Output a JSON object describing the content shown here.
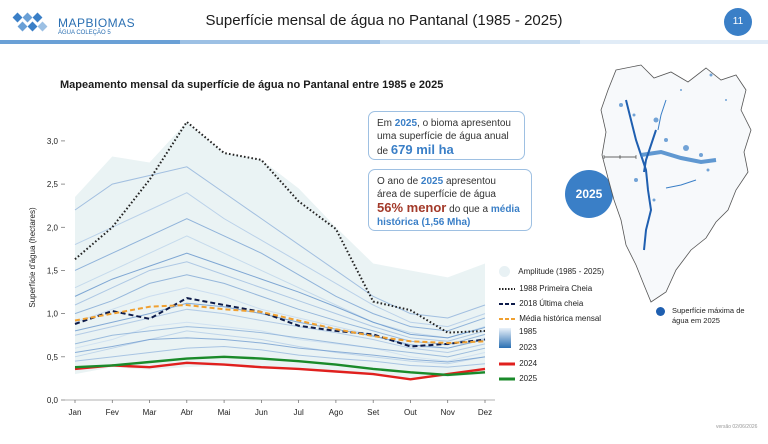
{
  "header": {
    "logo_text": "MAPBIOMAS",
    "logo_sub": "ÁGUA COLEÇÃO 5",
    "title": "Superfície mensal de água no Pantanal (1985 - 2025)",
    "page_number": "11"
  },
  "colors": {
    "accent": "#3a7fc7",
    "dark_blue": "#1f5fb0",
    "bar_colors": [
      "#6aa0d6",
      "#9cc0e4",
      "#c7dcf0",
      "#e1ecf7"
    ],
    "red": "#e0201e",
    "green": "#1a8a2a",
    "orange": "#f0a030"
  },
  "chart_data": {
    "type": "line",
    "title": "Mapeamento mensal da superfície de água no Pantanal entre 1985 e 2025",
    "xlabel": "",
    "ylabel": "Superfície d'água (hectares)",
    "categories": [
      "Jan",
      "Fev",
      "Mar",
      "Abr",
      "Mai",
      "Jun",
      "Jul",
      "Ago",
      "Set",
      "Out",
      "Nov",
      "Dez"
    ],
    "ylim": [
      0,
      3.3
    ],
    "yticks": [
      "0,0",
      "0,5",
      "1,0",
      "1,5",
      "2,0",
      "2,5",
      "3,0"
    ],
    "amplitude": {
      "name": "Amplitude (1985 - 2025)",
      "max": [
        2.35,
        2.82,
        2.75,
        3.22,
        2.86,
        2.78,
        2.45,
        2.0,
        1.58,
        1.5,
        1.42,
        1.58
      ],
      "min": [
        0.3,
        0.38,
        0.35,
        0.38,
        0.4,
        0.36,
        0.35,
        0.32,
        0.3,
        0.24,
        0.27,
        0.3
      ]
    },
    "gradient_series": [
      [
        0.6,
        0.7,
        0.85,
        0.9,
        0.85,
        0.8,
        0.7,
        0.65,
        0.6,
        0.5,
        0.45,
        0.55
      ],
      [
        0.9,
        1.05,
        1.2,
        1.3,
        1.2,
        1.05,
        0.95,
        0.85,
        0.75,
        0.62,
        0.6,
        0.72
      ],
      [
        1.3,
        1.5,
        1.7,
        1.9,
        1.7,
        1.5,
        1.3,
        1.1,
        0.9,
        0.78,
        0.72,
        0.85
      ],
      [
        0.5,
        0.6,
        0.7,
        0.8,
        0.75,
        0.7,
        0.62,
        0.55,
        0.5,
        0.45,
        0.42,
        0.5
      ],
      [
        1.8,
        2.0,
        2.2,
        2.4,
        2.1,
        1.85,
        1.6,
        1.35,
        1.1,
        0.9,
        0.85,
        1.0
      ],
      [
        0.75,
        0.85,
        0.95,
        1.05,
        1.0,
        0.92,
        0.85,
        0.78,
        0.7,
        0.6,
        0.55,
        0.65
      ],
      [
        1.1,
        1.3,
        1.5,
        1.6,
        1.45,
        1.3,
        1.15,
        1.0,
        0.85,
        0.72,
        0.68,
        0.8
      ],
      [
        0.45,
        0.5,
        0.55,
        0.6,
        0.62,
        0.58,
        0.52,
        0.48,
        0.45,
        0.4,
        0.38,
        0.42
      ],
      [
        2.2,
        2.5,
        2.6,
        2.7,
        2.4,
        2.1,
        1.8,
        1.5,
        1.2,
        1.0,
        0.95,
        1.1
      ],
      [
        0.65,
        0.75,
        0.8,
        0.85,
        0.82,
        0.78,
        0.72,
        0.66,
        0.6,
        0.55,
        0.5,
        0.6
      ],
      [
        1.0,
        1.15,
        1.35,
        1.45,
        1.35,
        1.2,
        1.05,
        0.92,
        0.8,
        0.68,
        0.64,
        0.76
      ],
      [
        1.5,
        1.7,
        1.9,
        2.1,
        1.9,
        1.7,
        1.45,
        1.2,
        1.0,
        0.85,
        0.8,
        0.95
      ],
      [
        0.55,
        0.62,
        0.7,
        0.72,
        0.7,
        0.66,
        0.6,
        0.56,
        0.52,
        0.47,
        0.44,
        0.5
      ],
      [
        0.8,
        0.9,
        1.0,
        1.12,
        1.08,
        1.0,
        0.9,
        0.82,
        0.74,
        0.64,
        0.6,
        0.7
      ],
      [
        1.2,
        1.4,
        1.55,
        1.7,
        1.55,
        1.4,
        1.25,
        1.08,
        0.9,
        0.76,
        0.72,
        0.84
      ]
    ],
    "series": [
      {
        "name": "1988 Primeira Cheia",
        "style": "dotted",
        "color": "#222222",
        "values": [
          1.63,
          2.0,
          2.55,
          3.22,
          2.86,
          2.78,
          2.3,
          1.98,
          1.14,
          1.04,
          0.78,
          0.8
        ]
      },
      {
        "name": "2018 Última cheia",
        "style": "dashed",
        "color": "#0d1b4a",
        "values": [
          0.88,
          1.03,
          0.94,
          1.18,
          1.1,
          1.02,
          0.86,
          0.8,
          0.76,
          0.62,
          0.65,
          0.7
        ]
      },
      {
        "name": "Média histórica mensal",
        "style": "dashed",
        "color": "#f0a030",
        "values": [
          0.92,
          1.0,
          1.08,
          1.1,
          1.05,
          1.02,
          0.92,
          0.82,
          0.74,
          0.68,
          0.66,
          0.68
        ]
      },
      {
        "name": "2024",
        "style": "solid",
        "color": "#e0201e",
        "values": [
          0.36,
          0.4,
          0.38,
          0.43,
          0.41,
          0.38,
          0.36,
          0.33,
          0.3,
          0.24,
          0.3,
          0.36
        ]
      },
      {
        "name": "2025",
        "style": "solid",
        "color": "#1a8a2a",
        "values": [
          0.38,
          0.4,
          0.44,
          0.48,
          0.5,
          0.48,
          0.45,
          0.41,
          0.36,
          0.32,
          0.29,
          0.32
        ]
      }
    ],
    "legend": {
      "amplitude": "Amplitude (1985 - 2025)",
      "first_flood": "1988 Primeira Cheia",
      "last_flood": "2018 Última cheia",
      "mean": "Média histórica mensal",
      "gradient_top": "1985",
      "gradient_bottom": "2023",
      "y2024": "2024",
      "y2025": "2025"
    }
  },
  "callout1": {
    "a": "Em ",
    "year": "2025",
    "b": ", o bioma apresentou",
    "c": "uma superfície de água anual",
    "d": "de ",
    "value": "679 mil ha"
  },
  "callout2": {
    "a": "O ano de ",
    "year": "2025",
    "b": " apresentou",
    "c": "área de superfície de água",
    "pct": "56% menor",
    "d": " do que a ",
    "mean1": "média",
    "mean2": "histórica (1,56 Mha)"
  },
  "year_badge": "2025",
  "map": {
    "legend": "Superfície máxima de água em 2025"
  },
  "version": "versão 02/06/2026"
}
